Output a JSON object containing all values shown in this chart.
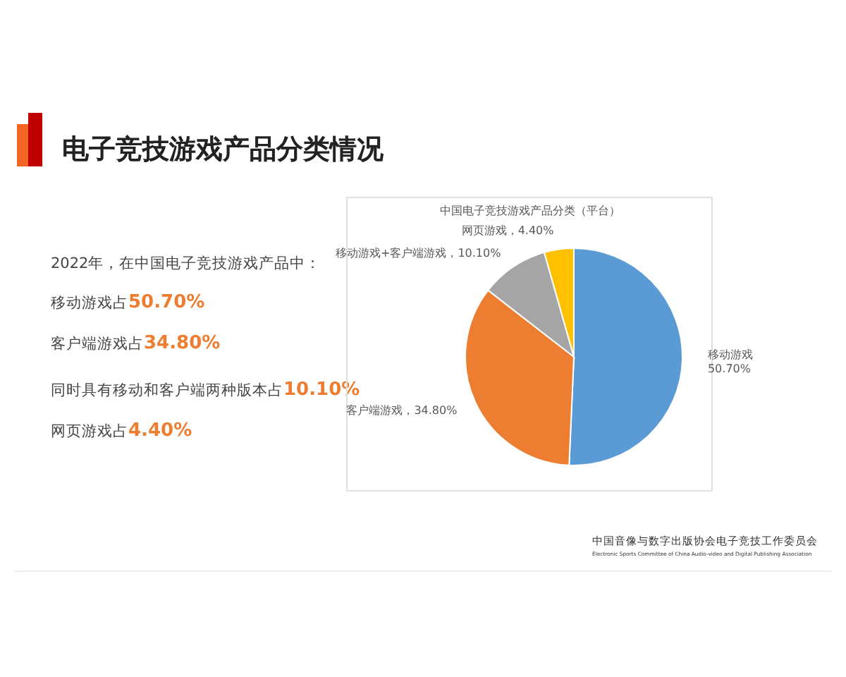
{
  "chart_data": [
    {
      "type": "other",
      "title": "电子竞技游戏产品分类情况",
      "annotations": [
        "2022年，在中国电子竞技游戏产品中：",
        "移动游戏占50.70%",
        "客户端游戏占34.80%",
        "同时具有移动和客户端两种版本占10.10%",
        "网页游戏占4.40%"
      ]
    },
    {
      "type": "pie",
      "title": "中国电子竞技游戏产品分类（平台）",
      "categories": [
        "移动游戏",
        "客户端游戏",
        "移动游戏+客户端游戏",
        "网页游戏"
      ],
      "values": [
        50.7,
        34.8,
        10.1,
        4.4
      ],
      "colors": [
        "#5b9bd5",
        "#ed7d31",
        "#a5a5a5",
        "#ffc000"
      ],
      "value_labels": [
        "50.70%",
        "34.80%",
        "10.10%",
        "4.40%"
      ],
      "annotations": [
        "中国音像与数字出版协会电子竞技工作委员会",
        "Electronic Sports Committee of China Audio-video and Digital Publishing Association"
      ]
    }
  ]
}
